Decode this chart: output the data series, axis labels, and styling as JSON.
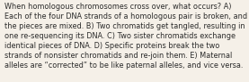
{
  "lines": [
    "When homologous chromosomes cross over, what occurs? A)",
    "Each of the four DNA strands of a homologous pair is broken, and",
    "the pieces are mixed. B) Two chromatids get tangled, resulting in",
    "one re-sequencing its DNA. C) Two sister chromatids exchange",
    "identical pieces of DNA. D) Specific proteins break the two",
    "strands of nonsister chromatids and re-join them. E) Maternal",
    "alleles are “corrected” to be like paternal alleles, and vice versa."
  ],
  "background_color": "#f5f0e8",
  "text_color": "#2a2a2a",
  "font_size": 5.85,
  "font_family": "DejaVu Sans"
}
